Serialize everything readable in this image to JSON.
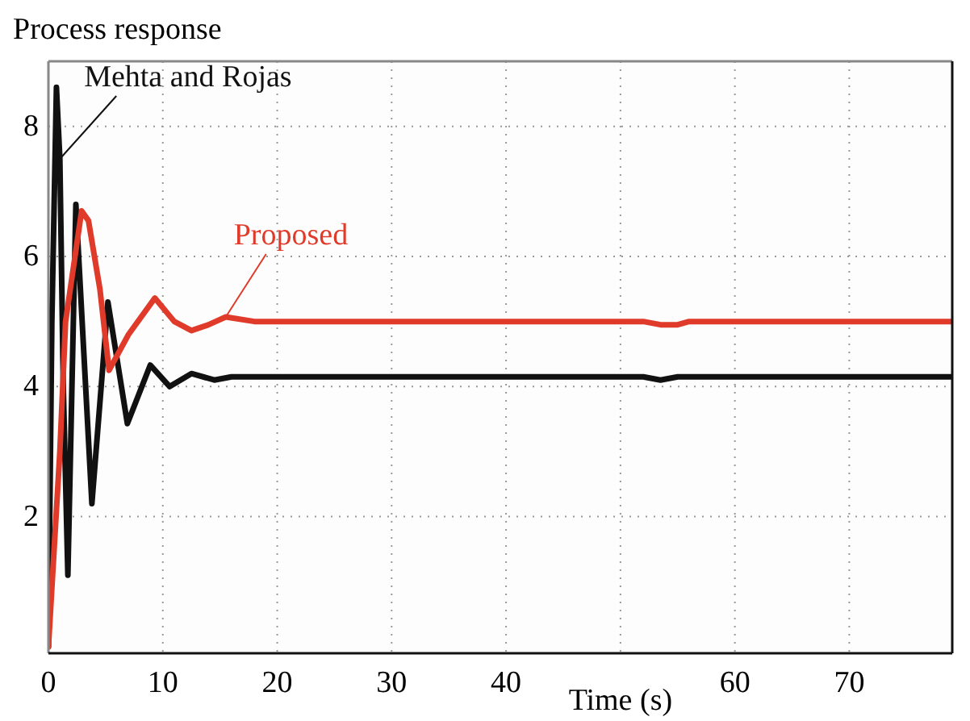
{
  "chart_data": {
    "type": "line",
    "ylabel": "Process response",
    "xlabel": "Time (s)",
    "xlim": [
      0,
      79
    ],
    "ylim": [
      -0.1,
      9
    ],
    "xticks": [
      0,
      10,
      20,
      30,
      40,
      {
        "value": 50,
        "label": null
      },
      60,
      70
    ],
    "yticks": [
      2,
      4,
      6,
      8
    ],
    "grid": true,
    "line_style": "solid",
    "marker": "none",
    "series": [
      {
        "name": "Mehta and Rojas",
        "color": "#111111",
        "x": [
          0,
          0.3,
          0.7,
          1.0,
          1.3,
          1.7,
          2.4,
          3.8,
          5.2,
          6.9,
          8.9,
          10.6,
          12.5,
          14.5,
          16,
          52,
          53.5,
          55,
          56,
          79
        ],
        "values": [
          0,
          5,
          8.6,
          7.5,
          4,
          1.1,
          6.8,
          2.2,
          5.3,
          3.43,
          4.33,
          4.0,
          4.2,
          4.1,
          4.15,
          4.15,
          4.1,
          4.15,
          4.15,
          4.15
        ]
      },
      {
        "name": "Proposed",
        "color": "#e03a2a",
        "x": [
          0,
          0.5,
          1,
          1.5,
          2.9,
          3.5,
          4.5,
          5.3,
          7,
          9.3,
          11,
          12.5,
          14,
          15.5,
          18,
          52,
          53.5,
          55,
          56,
          79
        ],
        "values": [
          0,
          1.5,
          3,
          5.0,
          6.7,
          6.55,
          5.5,
          4.25,
          4.8,
          5.36,
          5.0,
          4.86,
          4.95,
          5.07,
          5.0,
          5.0,
          4.95,
          4.95,
          5.0,
          5.0
        ]
      }
    ]
  }
}
